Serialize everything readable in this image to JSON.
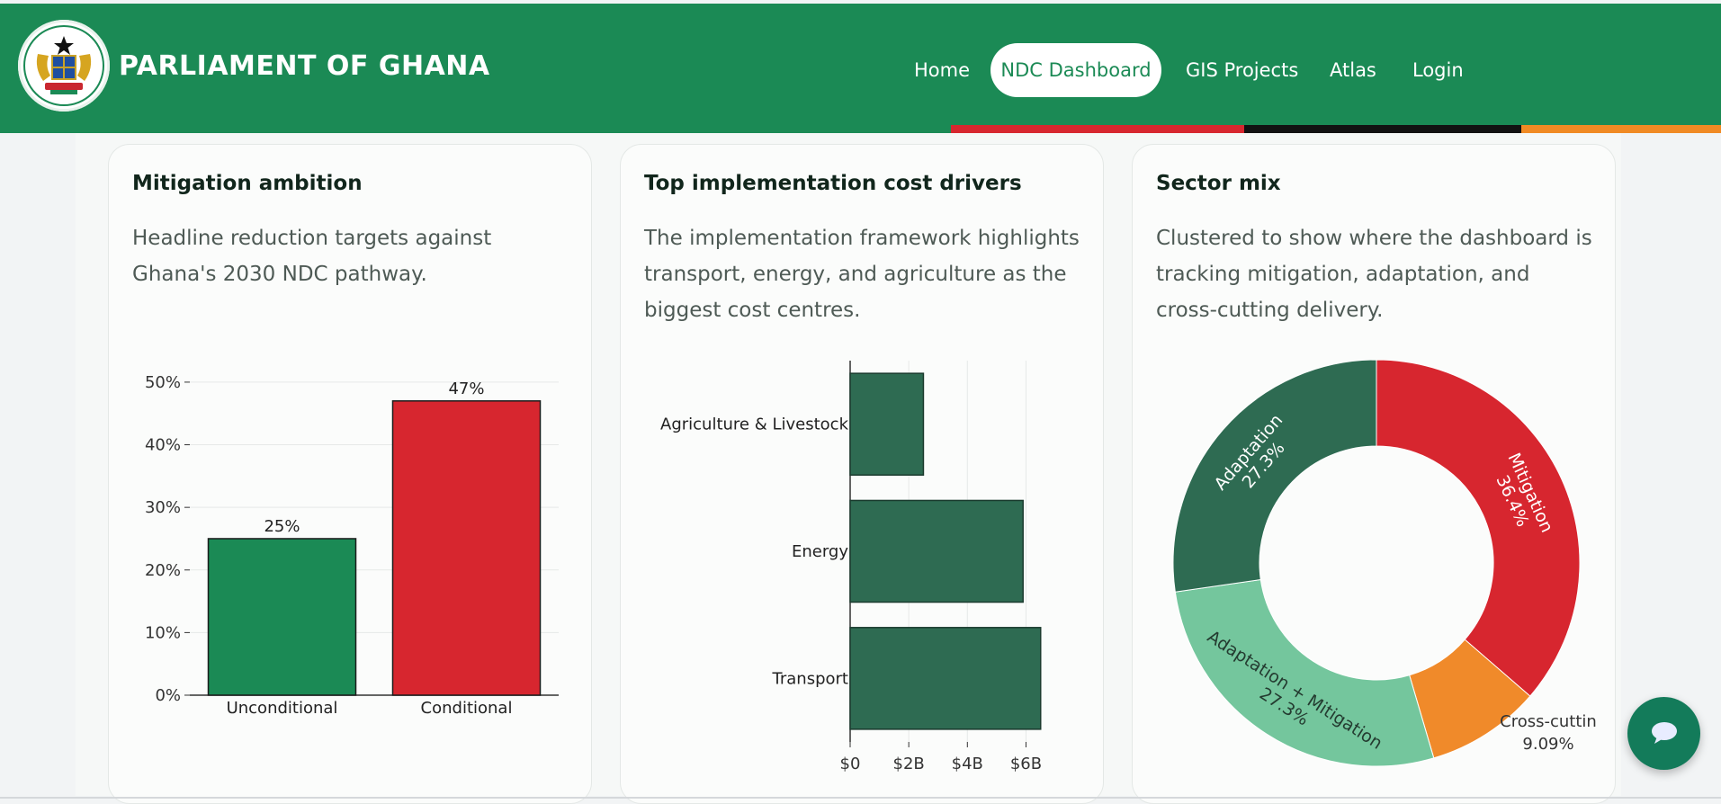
{
  "header": {
    "site_title": "PARLIAMENT OF GHANA",
    "logo_icon": "ghana-coat-of-arms-icon",
    "nav": [
      {
        "label": "Home",
        "active": false
      },
      {
        "label": "NDC Dashboard",
        "active": true
      },
      {
        "label": "GIS Projects",
        "active": false
      },
      {
        "label": "Atlas",
        "active": false
      },
      {
        "label": "Login",
        "active": false
      }
    ],
    "stripe_colors": [
      "#d7272f",
      "#121212",
      "#f08a24"
    ],
    "brand_color": "#1b8a55"
  },
  "cards": [
    {
      "title": "Mitigation ambition",
      "description": "Headline reduction targets against Ghana's 2030 NDC pathway."
    },
    {
      "title": "Top implementation cost drivers",
      "description": "The implementation framework highlights transport, energy, and agriculture as the biggest cost centres."
    },
    {
      "title": "Sector mix",
      "description": "Clustered to show where the dashboard is tracking mitigation, adaptation, and cross-cutting delivery."
    }
  ],
  "chart_data": [
    {
      "type": "bar",
      "categories": [
        "Unconditional",
        "Conditional"
      ],
      "values": [
        25,
        47
      ],
      "data_labels": [
        "25%",
        "47%"
      ],
      "colors": [
        "#1b8a55",
        "#d7262f"
      ],
      "yticks": [
        "0%",
        "10%",
        "20%",
        "30%",
        "40%",
        "50%"
      ],
      "ylim": [
        0,
        52
      ],
      "grid": true
    },
    {
      "type": "bar",
      "orientation": "horizontal",
      "categories": [
        "Agriculture & Livestock",
        "Energy",
        "Transport"
      ],
      "values": [
        2.5,
        5.9,
        6.5
      ],
      "unit": "$B",
      "xticks": [
        "$0",
        "$2B",
        "$4B",
        "$6B"
      ],
      "xlim": [
        0,
        6.6
      ],
      "color": "#2e6b52",
      "grid": true
    },
    {
      "type": "pie",
      "hole": true,
      "slices": [
        {
          "label": "Mitigation",
          "value": 36.4,
          "text": "36.4%",
          "color": "#d7262f"
        },
        {
          "label": "Cross-cuttin",
          "value": 9.09,
          "text": "9.09%",
          "color": "#f08a2a"
        },
        {
          "label": "Adaptation + Mitigation",
          "value": 27.3,
          "text": "27.3%",
          "color": "#74c69d"
        },
        {
          "label": "Adaptation",
          "value": 27.3,
          "text": "27.3%",
          "color": "#2e6b52"
        }
      ]
    }
  ],
  "chat_button": {
    "icon": "chat-bubble-icon"
  }
}
